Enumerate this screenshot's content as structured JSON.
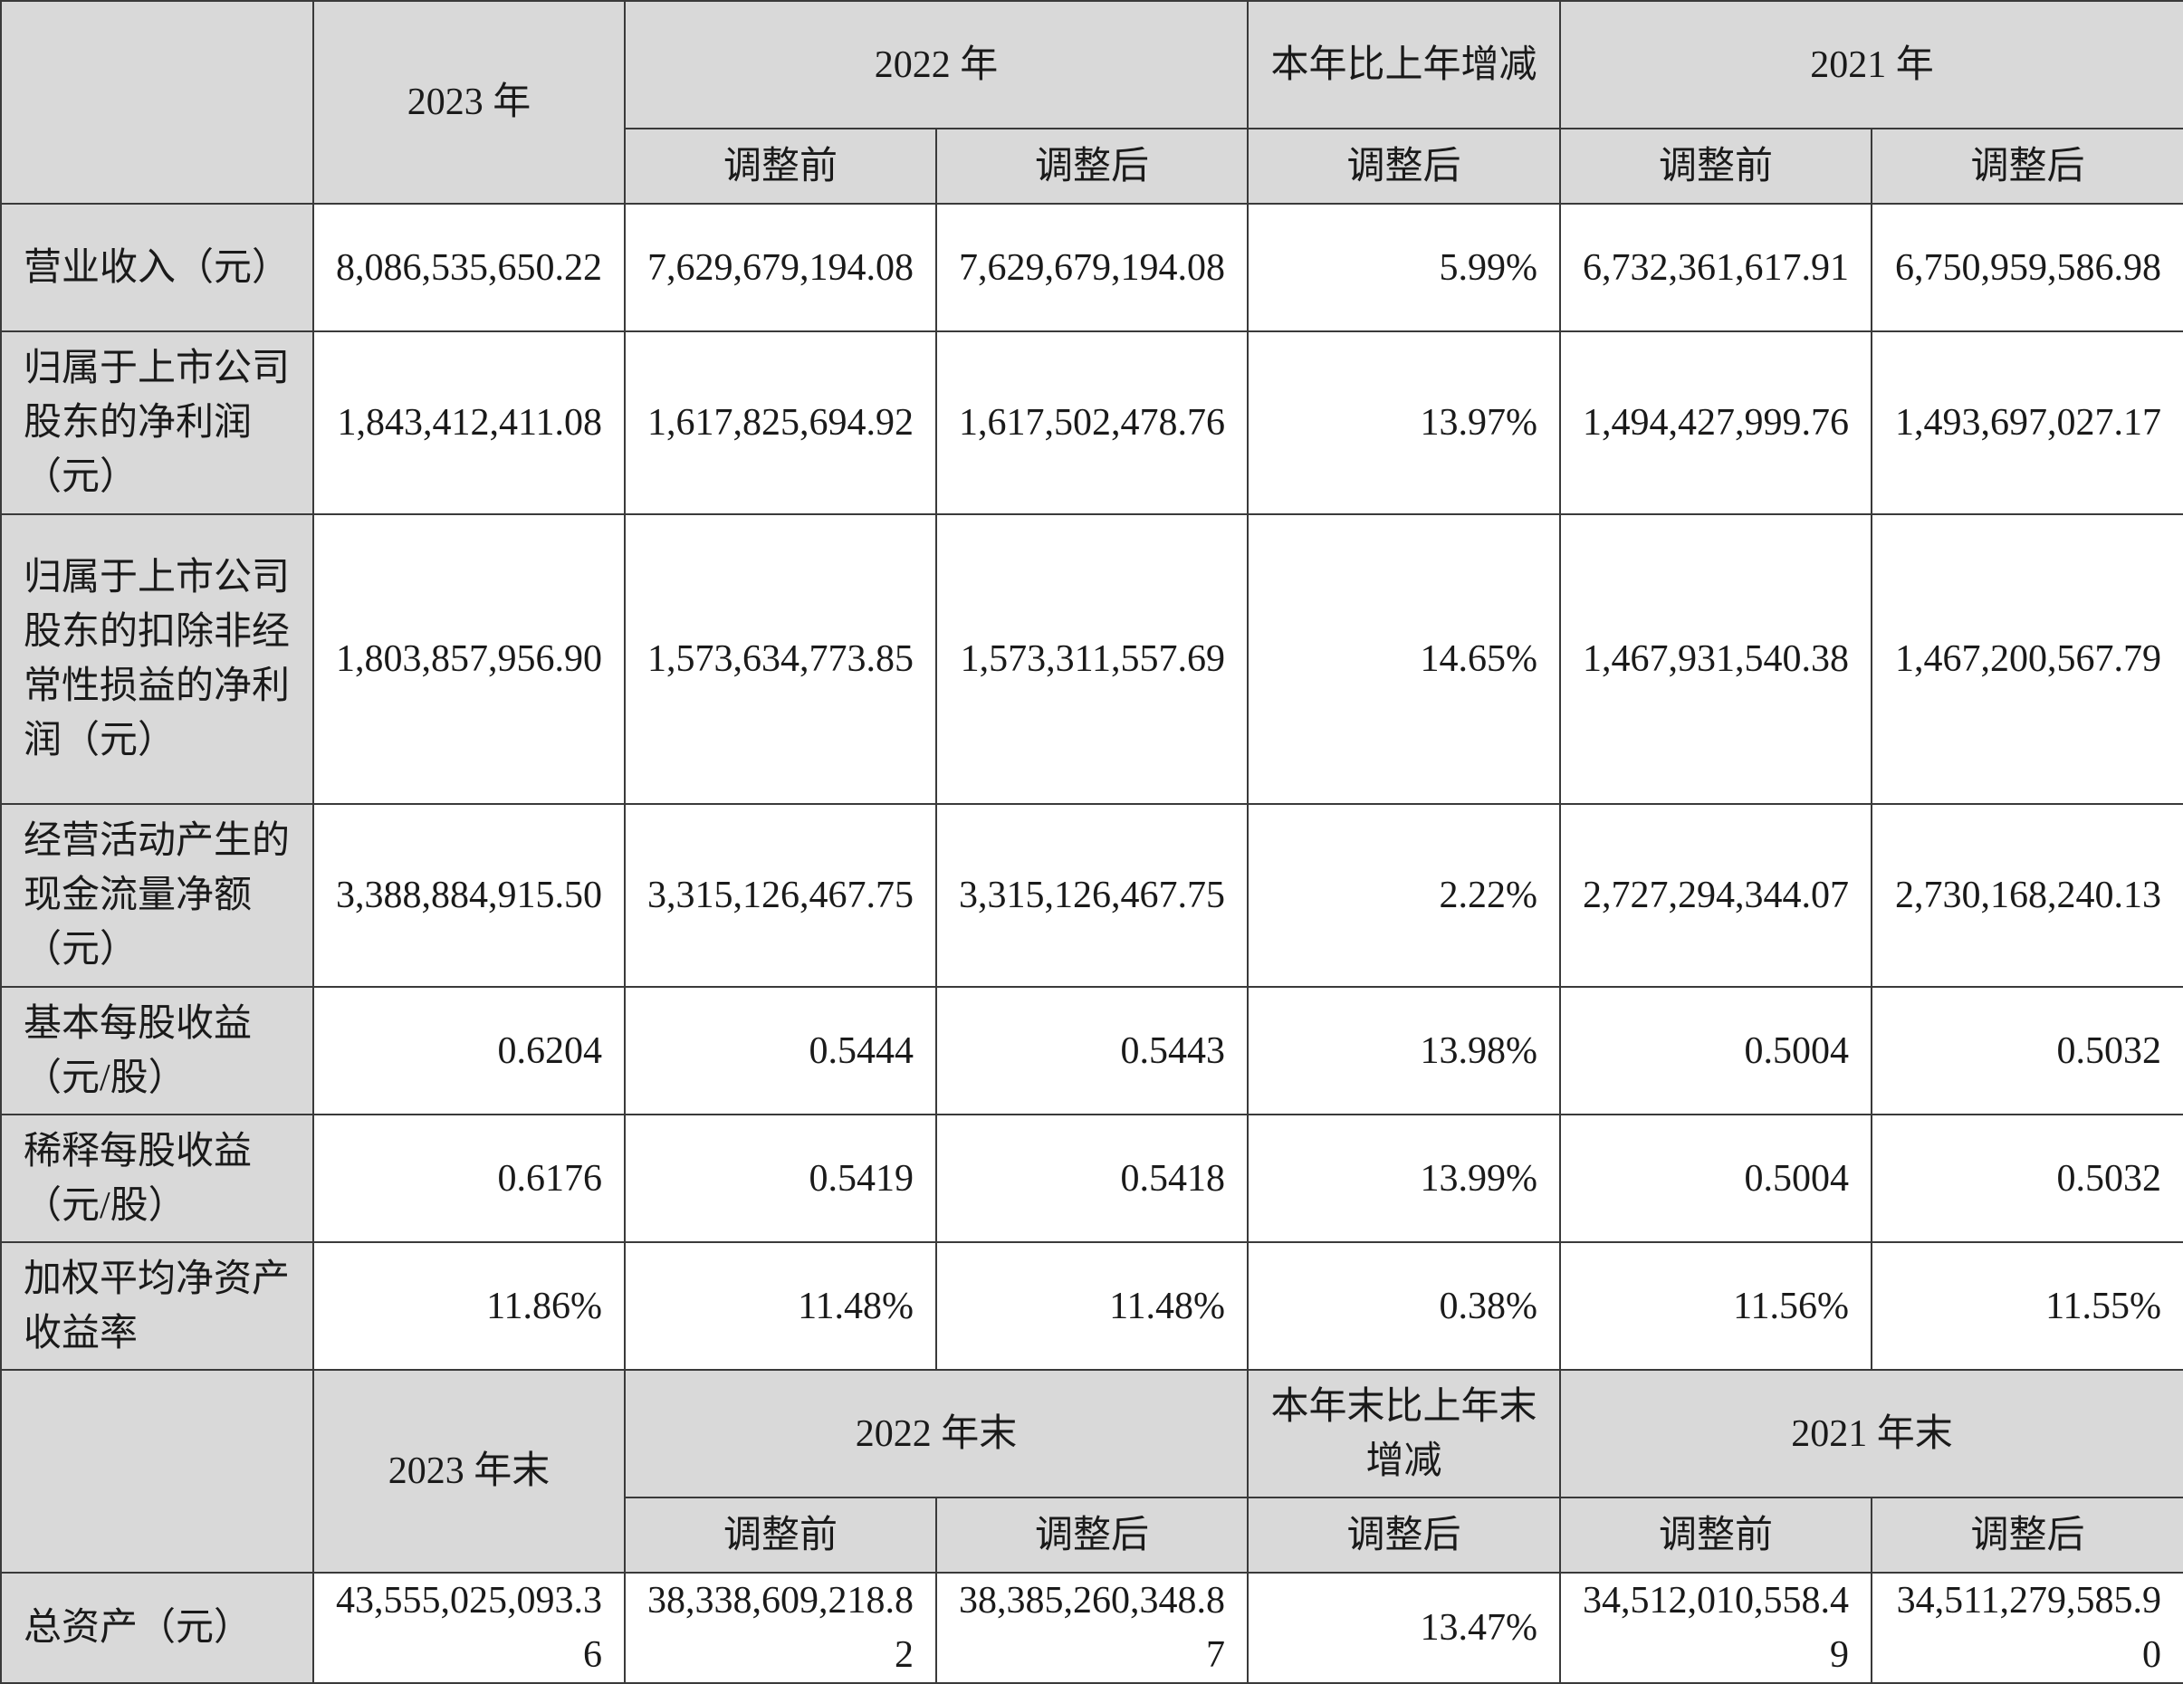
{
  "section1": {
    "col_2023": "2023 年",
    "col_2022": "2022 年",
    "col_change": "本年比上年增减",
    "col_2021": "2021 年",
    "sub_before": "调整前",
    "sub_after": "调整后",
    "rows": [
      {
        "label": "营业收入（元）",
        "v2023": "8,086,535,650.22",
        "v2022_before": "7,629,679,194.08",
        "v2022_after": "7,629,679,194.08",
        "change": "5.99%",
        "v2021_before": "6,732,361,617.91",
        "v2021_after": "6,750,959,586.98"
      },
      {
        "label": "归属于上市公司股东的净利润（元）",
        "v2023": "1,843,412,411.08",
        "v2022_before": "1,617,825,694.92",
        "v2022_after": "1,617,502,478.76",
        "change": "13.97%",
        "v2021_before": "1,494,427,999.76",
        "v2021_after": "1,493,697,027.17"
      },
      {
        "label": "归属于上市公司股东的扣除非经常性损益的净利润（元）",
        "v2023": "1,803,857,956.90",
        "v2022_before": "1,573,634,773.85",
        "v2022_after": "1,573,311,557.69",
        "change": "14.65%",
        "v2021_before": "1,467,931,540.38",
        "v2021_after": "1,467,200,567.79"
      },
      {
        "label": "经营活动产生的现金流量净额（元）",
        "v2023": "3,388,884,915.50",
        "v2022_before": "3,315,126,467.75",
        "v2022_after": "3,315,126,467.75",
        "change": "2.22%",
        "v2021_before": "2,727,294,344.07",
        "v2021_after": "2,730,168,240.13"
      },
      {
        "label": "基本每股收益（元/股）",
        "v2023": "0.6204",
        "v2022_before": "0.5444",
        "v2022_after": "0.5443",
        "change": "13.98%",
        "v2021_before": "0.5004",
        "v2021_after": "0.5032"
      },
      {
        "label": "稀释每股收益（元/股）",
        "v2023": "0.6176",
        "v2022_before": "0.5419",
        "v2022_after": "0.5418",
        "change": "13.99%",
        "v2021_before": "0.5004",
        "v2021_after": "0.5032"
      },
      {
        "label": "加权平均净资产收益率",
        "v2023": "11.86%",
        "v2022_before": "11.48%",
        "v2022_after": "11.48%",
        "change": "0.38%",
        "v2021_before": "11.56%",
        "v2021_after": "11.55%"
      }
    ]
  },
  "section2": {
    "col_2023": "2023 年末",
    "col_2022": "2022 年末",
    "col_change": "本年末比上年末增减",
    "col_2021": "2021 年末",
    "sub_before": "调整前",
    "sub_after": "调整后",
    "rows": [
      {
        "label": "总资产（元）",
        "v2023": "43,555,025,093.36",
        "v2022_before": "38,338,609,218.82",
        "v2022_after": "38,385,260,348.87",
        "change": "13.47%",
        "v2021_before": "34,512,010,558.49",
        "v2021_after": "34,511,279,585.90"
      }
    ]
  }
}
